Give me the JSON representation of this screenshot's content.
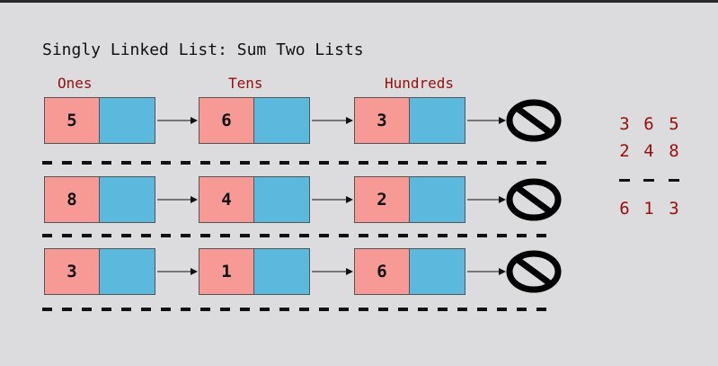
{
  "title": "Singly Linked List: Sum Two Lists",
  "column_labels": {
    "ones": "Ones",
    "tens": "Tens",
    "hundreds": "Hundreds"
  },
  "lists": [
    {
      "values": [
        "5",
        "6",
        "3"
      ]
    },
    {
      "values": [
        "8",
        "4",
        "2"
      ]
    },
    {
      "values": [
        "3",
        "1",
        "6"
      ]
    }
  ],
  "icons": {
    "terminator": "null-icon",
    "link": "arrow-icon"
  },
  "colors": {
    "value_cell": "#f79a96",
    "pointer_cell": "#5bb9dd",
    "label_text": "#9a0d0d"
  },
  "sum": {
    "row1": [
      "3",
      "6",
      "5"
    ],
    "row2": [
      "2",
      "4",
      "8"
    ],
    "result": [
      "6",
      "1",
      "3"
    ]
  }
}
